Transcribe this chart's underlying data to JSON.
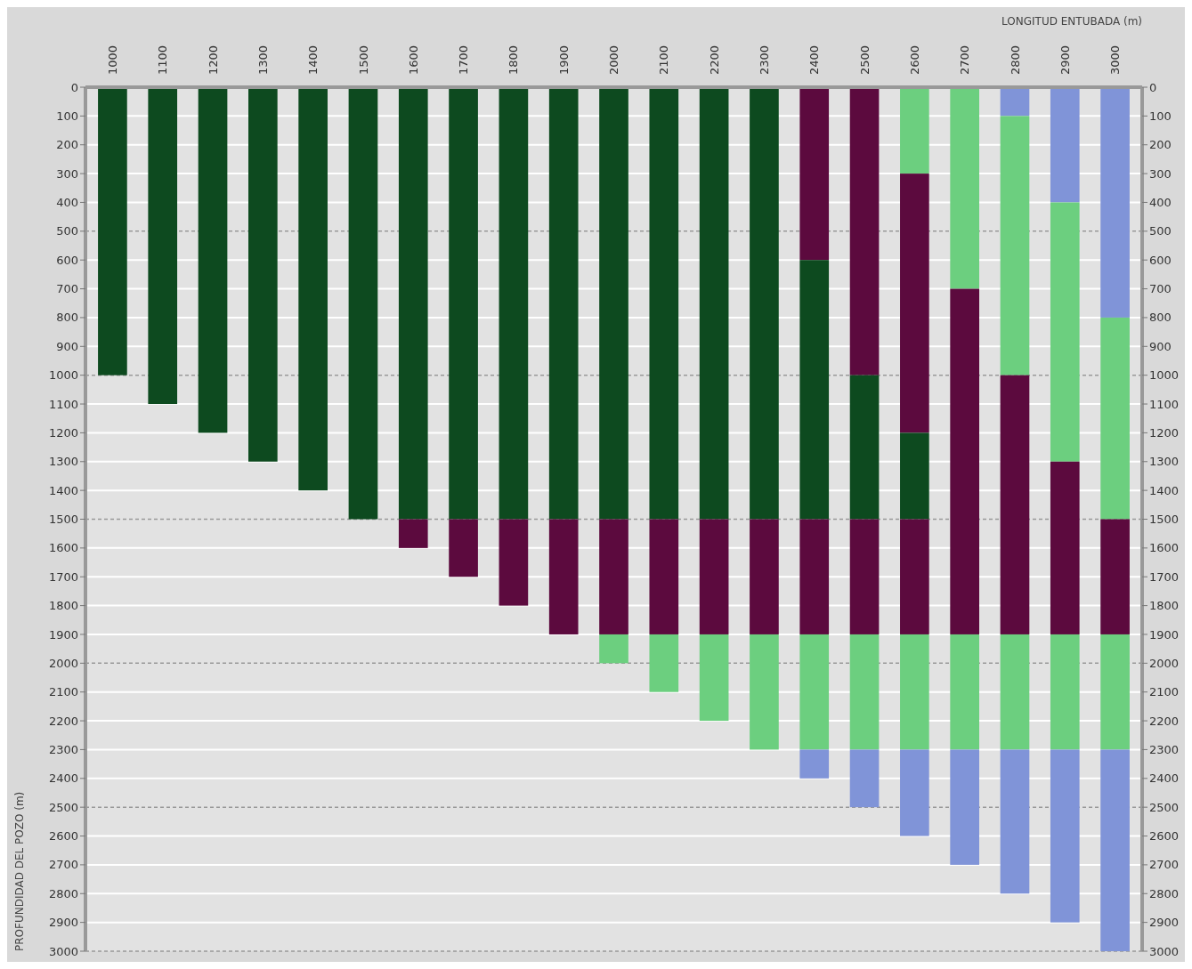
{
  "chart_data": {
    "type": "bar",
    "stacked": true,
    "title": "LONGITUD ENTUBADA (m)",
    "ylabel": "PROFUNDIDAD DEL POZO (m)",
    "categories": [
      "1000",
      "1100",
      "1200",
      "1300",
      "1400",
      "1500",
      "1600",
      "1700",
      "1800",
      "1900",
      "2000",
      "2100",
      "2200",
      "2300",
      "2400",
      "2500",
      "2600",
      "2700",
      "2800",
      "2900",
      "3000"
    ],
    "series": [
      {
        "color": "#8094d8",
        "values": [
          null,
          null,
          null,
          null,
          null,
          null,
          null,
          null,
          null,
          null,
          null,
          null,
          null,
          null,
          null,
          null,
          null,
          null,
          100,
          400,
          800
        ]
      },
      {
        "color": "#6ccf7f",
        "values": [
          null,
          null,
          null,
          null,
          null,
          null,
          null,
          null,
          null,
          null,
          null,
          null,
          null,
          null,
          null,
          null,
          300,
          700,
          900,
          900,
          700
        ]
      },
      {
        "color": "#5c0a3e",
        "values": [
          null,
          null,
          null,
          null,
          null,
          null,
          null,
          null,
          null,
          null,
          null,
          null,
          null,
          null,
          600,
          1000,
          900,
          1200,
          900,
          600,
          400
        ]
      },
      {
        "color": "#0d4a1f",
        "values": [
          1000,
          1100,
          1200,
          1300,
          1400,
          1500,
          1500,
          1500,
          1500,
          1500,
          1500,
          1500,
          1500,
          1500,
          900,
          500,
          300,
          null,
          null,
          null,
          null
        ]
      },
      {
        "color": "#5c0a3e",
        "values": [
          null,
          null,
          null,
          null,
          null,
          null,
          100,
          200,
          300,
          400,
          400,
          400,
          400,
          400,
          400,
          400,
          400,
          null,
          null,
          null,
          null
        ]
      },
      {
        "color": "#6ccf7f",
        "values": [
          null,
          null,
          null,
          null,
          null,
          null,
          null,
          null,
          null,
          null,
          100,
          200,
          300,
          400,
          400,
          400,
          400,
          400,
          400,
          400,
          400
        ]
      },
      {
        "color": "#8094d8",
        "values": [
          null,
          null,
          null,
          null,
          null,
          null,
          null,
          null,
          null,
          null,
          null,
          null,
          null,
          null,
          100,
          200,
          300,
          400,
          500,
          600,
          700
        ]
      }
    ],
    "ylim": [
      3000,
      0
    ],
    "yticks": [
      0,
      100,
      200,
      300,
      400,
      500,
      600,
      700,
      800,
      900,
      1000,
      1100,
      1200,
      1300,
      1400,
      1500,
      1600,
      1700,
      1800,
      1900,
      2000,
      2100,
      2200,
      2300,
      2400,
      2500,
      2600,
      2700,
      2800,
      2900,
      3000
    ],
    "y2lim": [
      3000,
      0
    ],
    "y2ticks": [
      0,
      100,
      200,
      300,
      400,
      500,
      600,
      700,
      800,
      900,
      1000,
      1100,
      1200,
      1300,
      1400,
      1500,
      1600,
      1700,
      1800,
      1900,
      2000,
      2100,
      2200,
      2300,
      2400,
      2500,
      2600,
      2700,
      2800,
      2900,
      3000
    ],
    "grid": "y"
  }
}
